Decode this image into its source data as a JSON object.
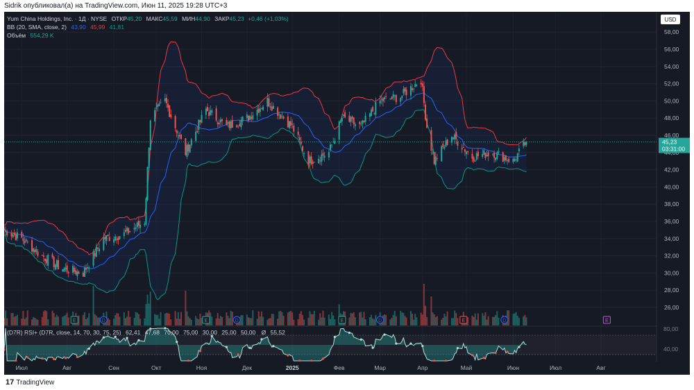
{
  "header": {
    "publish_line": "Sidrik опубликовал(а) на TradingView.com, Июн 11, 2025 19:28 UTC+3"
  },
  "legend": {
    "symbol": "Yum China Holdings, Inc. · 1Д · NYSE",
    "open_label": "ОТКР",
    "open_value": "45,20",
    "high_label": "МАКС",
    "high_value": "45,59",
    "low_label": "МИН",
    "low_value": "44,90",
    "close_label": "ЗАКР",
    "close_value": "45,23",
    "change": "+0,46 (+1,03%)",
    "bb_label": "BB (20, SMA, close, 2)",
    "bb_basis": "43,90",
    "bb_upper": "45,99",
    "bb_lower": "41,81",
    "volume_label": "Объём",
    "volume_value": "554,29 K"
  },
  "price_axis": {
    "currency": "USD",
    "labels": [
      "58,00",
      "56,00",
      "54,00",
      "52,00",
      "50,00",
      "48,00",
      "46,00",
      "44,00",
      "42,00",
      "40,00",
      "38,00",
      "36,00",
      "34,00",
      "32,00",
      "30,00",
      "28,00",
      "26,00"
    ],
    "last_price": "45,23",
    "countdown": "03:31:00"
  },
  "rsi": {
    "label": "(D7R) RSI+ (D7R, close, 14, 70, 30, 75, 25)",
    "values": [
      "62,41",
      "47,68",
      "70,00",
      "75,00",
      "30,00",
      "25,00",
      "50,00"
    ],
    "symbol": "Ø",
    "avg": "55,52",
    "axis_labels": [
      "80,00",
      "40,00"
    ]
  },
  "time_axis": {
    "labels": [
      "Июл",
      "Авг",
      "Сен",
      "Окт",
      "Ноя",
      "Дек",
      "2025",
      "Фев",
      "Мар",
      "Апр",
      "Май",
      "Июн",
      "Июл",
      "Авг"
    ]
  },
  "events": {
    "earnings_letter": "E",
    "dividend_letter": "D",
    "future_earnings_letter": "E"
  },
  "footer": {
    "brand": "TradingView",
    "logo_mark": "17"
  },
  "colors": {
    "bg": "#161a25",
    "up": "#26a69a",
    "down": "#ef5350",
    "bb_basis": "#2962ff",
    "bb_upper": "#f23645",
    "bb_lower": "#089981",
    "text": "#d1d4dc",
    "muted": "#787b86"
  },
  "chart_data": {
    "type": "candlestick",
    "title": "Yum China Holdings, Inc. · 1Д · NYSE",
    "ylim": [
      25,
      59
    ],
    "anchors": {
      "x": [
        "2024-06-19",
        "2024-07-01",
        "2024-07-15",
        "2024-07-29",
        "2024-08-12",
        "2024-08-26",
        "2024-09-09",
        "2024-09-23",
        "2024-09-27",
        "2024-10-07",
        "2024-10-21",
        "2024-11-04",
        "2024-11-18",
        "2024-12-02",
        "2024-12-16",
        "2025-01-02",
        "2025-01-13",
        "2025-01-27",
        "2025-02-05",
        "2025-02-18",
        "2025-03-03",
        "2025-03-17",
        "2025-03-31",
        "2025-04-04",
        "2025-04-09",
        "2025-04-21",
        "2025-05-05",
        "2025-05-19",
        "2025-06-02",
        "2025-06-11"
      ],
      "close": [
        35.0,
        34.0,
        32.0,
        30.5,
        30.0,
        34.0,
        34.5,
        36.0,
        48.0,
        50.0,
        44.0,
        49.0,
        47.0,
        48.0,
        50.0,
        47.0,
        43.0,
        44.0,
        48.0,
        47.0,
        50.0,
        50.5,
        52.5,
        47.0,
        43.0,
        46.0,
        43.5,
        44.0,
        43.0,
        45.23
      ]
    }
  }
}
